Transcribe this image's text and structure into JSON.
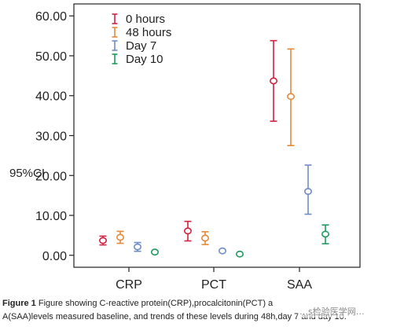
{
  "chart_data": {
    "type": "errorbar",
    "ylabel": "95%CI",
    "ylim": [
      -3,
      63
    ],
    "yticks": [
      "0.00",
      "10.00",
      "20.00",
      "30.00",
      "40.00",
      "50.00",
      "60.00"
    ],
    "categories": [
      "CRP",
      "PCT",
      "SAA"
    ],
    "legend_position": "top-left",
    "series": [
      {
        "name": "0 hours",
        "color": "#d2223f",
        "mean": [
          3.7,
          6.1,
          43.7
        ],
        "lower": [
          2.6,
          3.6,
          33.6
        ],
        "upper": [
          4.8,
          8.5,
          53.8
        ]
      },
      {
        "name": "48 hours",
        "color": "#e48a3a",
        "mean": [
          4.5,
          4.3,
          39.8
        ],
        "lower": [
          3.0,
          2.7,
          27.5
        ],
        "upper": [
          6.0,
          5.9,
          51.7
        ]
      },
      {
        "name": "Day 7",
        "color": "#6f8dc6",
        "mean": [
          2.1,
          1.1,
          16.0
        ],
        "lower": [
          1.0,
          0.9,
          10.3
        ],
        "upper": [
          3.2,
          1.3,
          22.6
        ]
      },
      {
        "name": "Day 10",
        "color": "#1e9a5e",
        "mean": [
          0.8,
          0.3,
          5.3
        ],
        "lower": [
          0.6,
          0.1,
          2.9
        ],
        "upper": [
          1.0,
          0.5,
          7.6
        ]
      }
    ]
  },
  "caption": {
    "lead": "Figure 1",
    "line1": " Figure showing C-reactive protein(CRP),procalcitonin(PCT) a",
    "line2": "A(SAA)levels measured baseline, and trends of these levels during 48h,day 7 and day 10."
  },
  "watermark": "…s检验医学网…"
}
